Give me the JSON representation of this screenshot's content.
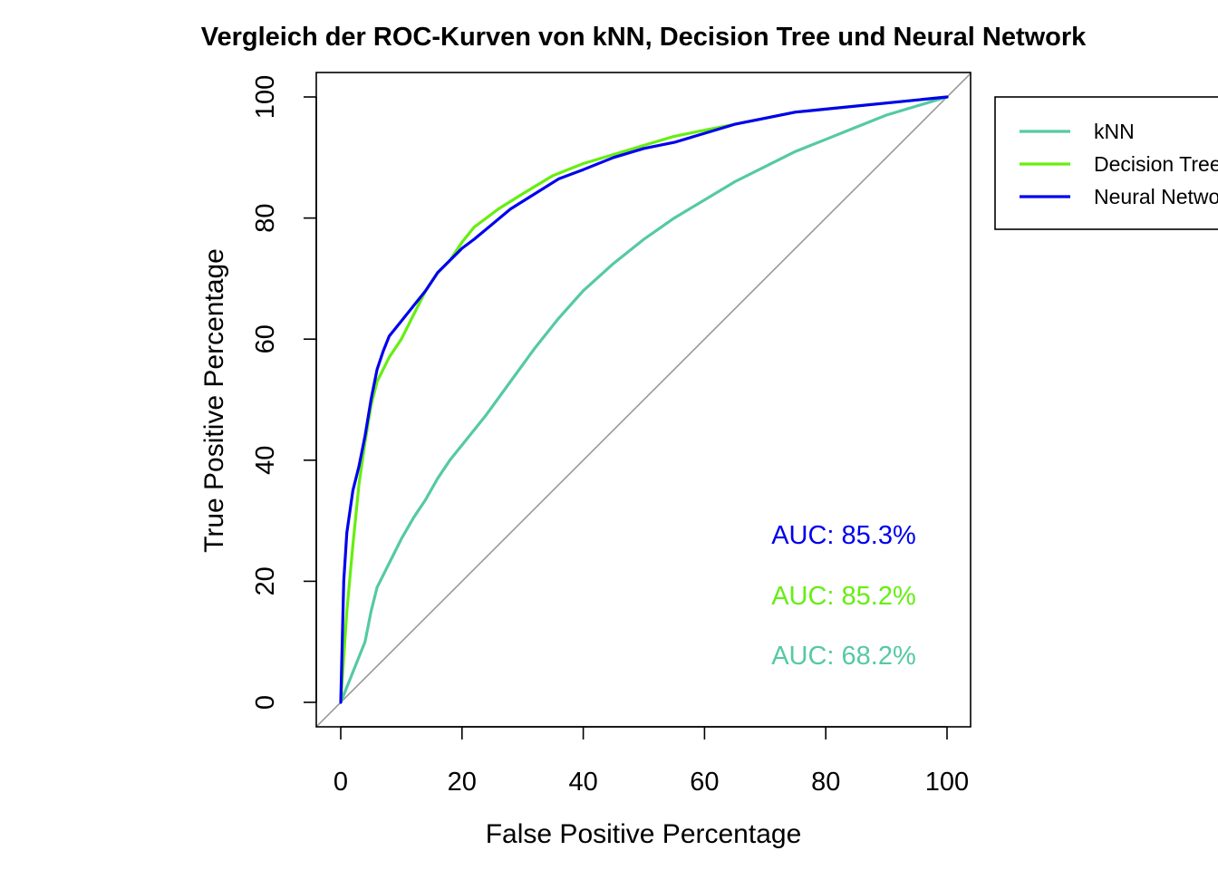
{
  "chart_data": {
    "type": "line",
    "title": "Vergleich der ROC-Kurven von kNN, Decision Tree und Neural Network",
    "xlabel": "False Positive Percentage",
    "ylabel": "True Positive Percentage",
    "xlim": [
      100,
      0
    ],
    "ylim": [
      0,
      100
    ],
    "x_ticks": [
      0,
      20,
      40,
      60,
      80,
      100
    ],
    "y_ticks": [
      0,
      20,
      40,
      60,
      80,
      100
    ],
    "grid": false,
    "legend_position": "top-right",
    "reference_line": {
      "color": "#999999"
    },
    "series": [
      {
        "name": "kNN",
        "color": "#55C9A5",
        "auc_label": "AUC: 68.2%",
        "points": [
          [
            0,
            0
          ],
          [
            2,
            5
          ],
          [
            4,
            10
          ],
          [
            5,
            15
          ],
          [
            6,
            19
          ],
          [
            8,
            23
          ],
          [
            10,
            27
          ],
          [
            12,
            30.5
          ],
          [
            14,
            33.5
          ],
          [
            16,
            37
          ],
          [
            18,
            40
          ],
          [
            20,
            42.5
          ],
          [
            24,
            47.5
          ],
          [
            28,
            53
          ],
          [
            32,
            58.5
          ],
          [
            36,
            63.5
          ],
          [
            40,
            68
          ],
          [
            45,
            72.5
          ],
          [
            50,
            76.5
          ],
          [
            55,
            80
          ],
          [
            60,
            83
          ],
          [
            65,
            86
          ],
          [
            70,
            88.5
          ],
          [
            75,
            91
          ],
          [
            80,
            93
          ],
          [
            85,
            95
          ],
          [
            90,
            97
          ],
          [
            95,
            98.5
          ],
          [
            100,
            100
          ]
        ]
      },
      {
        "name": "Decision Tree",
        "color": "#66EE11",
        "auc_label": "AUC: 85.2%",
        "points": [
          [
            0,
            0
          ],
          [
            1,
            15
          ],
          [
            2,
            26
          ],
          [
            3,
            36
          ],
          [
            4,
            43
          ],
          [
            5,
            49
          ],
          [
            6,
            53
          ],
          [
            7,
            55
          ],
          [
            8,
            57
          ],
          [
            10,
            60
          ],
          [
            12,
            64
          ],
          [
            14,
            68
          ],
          [
            16,
            71
          ],
          [
            18,
            73
          ],
          [
            20,
            76
          ],
          [
            22,
            78.5
          ],
          [
            24,
            80
          ],
          [
            26,
            81.5
          ],
          [
            30,
            84
          ],
          [
            35,
            87
          ],
          [
            40,
            89
          ],
          [
            45,
            90.5
          ],
          [
            50,
            92
          ],
          [
            55,
            93.5
          ],
          [
            60,
            94.5
          ],
          [
            65,
            95.5
          ],
          [
            70,
            96.5
          ],
          [
            75,
            97.5
          ],
          [
            80,
            98
          ],
          [
            90,
            99
          ],
          [
            100,
            100
          ]
        ]
      },
      {
        "name": "Neural Network",
        "color": "#0000EE",
        "auc_label": "AUC: 85.3%",
        "points": [
          [
            0,
            0
          ],
          [
            0.5,
            20
          ],
          [
            1,
            28
          ],
          [
            2,
            35
          ],
          [
            3,
            39
          ],
          [
            4,
            44
          ],
          [
            5,
            50
          ],
          [
            6,
            55
          ],
          [
            7,
            58
          ],
          [
            8,
            60.5
          ],
          [
            10,
            63
          ],
          [
            12,
            65.5
          ],
          [
            14,
            68
          ],
          [
            16,
            71
          ],
          [
            18,
            73
          ],
          [
            20,
            75
          ],
          [
            22,
            76.5
          ],
          [
            25,
            79
          ],
          [
            28,
            81.5
          ],
          [
            32,
            84
          ],
          [
            36,
            86.5
          ],
          [
            40,
            88
          ],
          [
            45,
            90
          ],
          [
            50,
            91.5
          ],
          [
            55,
            92.5
          ],
          [
            60,
            94
          ],
          [
            65,
            95.5
          ],
          [
            70,
            96.5
          ],
          [
            75,
            97.5
          ],
          [
            80,
            98
          ],
          [
            90,
            99
          ],
          [
            100,
            100
          ]
        ]
      }
    ]
  }
}
